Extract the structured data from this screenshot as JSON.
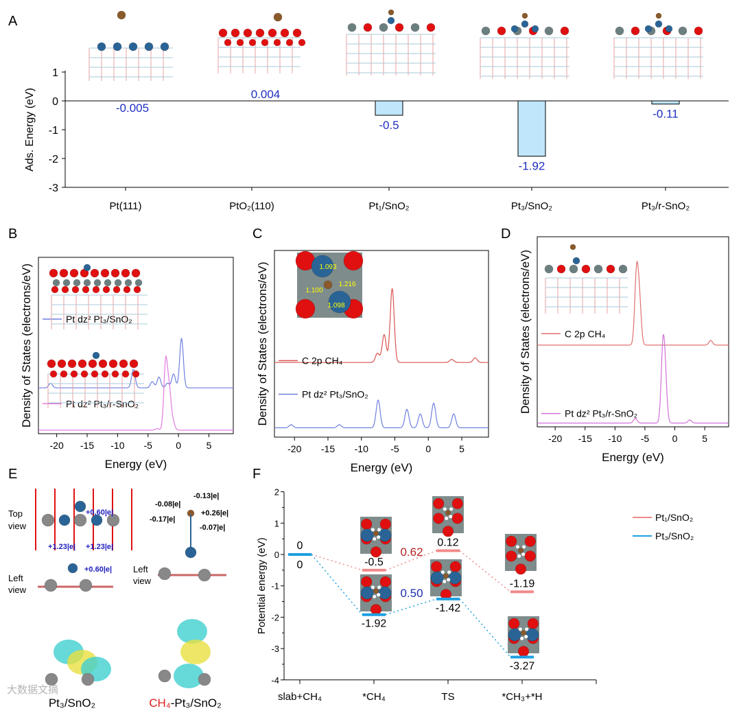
{
  "panels": {
    "a": "A",
    "b": "B",
    "c": "C",
    "d": "D",
    "e": "E",
    "f": "F"
  },
  "chart_data": [
    {
      "id": "A",
      "type": "bar",
      "ylabel": "Ads. Energy (eV)",
      "ylim": [
        -3,
        1
      ],
      "yticks": [
        1,
        0,
        -1,
        -2,
        -3
      ],
      "categories": [
        "Pt(111)",
        "PtO₂(110)",
        "Pt₁/SnO₂",
        "Pt₃/SnO₂",
        "Pt₃/r-SnO₂"
      ],
      "values": [
        -0.005,
        0.004,
        -0.5,
        -1.92,
        -0.11
      ],
      "value_labels": [
        "-0.005",
        "0.004",
        "-0.5",
        "-1.92",
        "-0.11"
      ],
      "bar_color": "#bfe6fb",
      "label_color": "#1f2fbf"
    },
    {
      "id": "B",
      "type": "line",
      "xlabel": "Energy (eV)",
      "ylabel": "Density of States  (electrons/eV)",
      "xlim": [
        -23,
        9
      ],
      "xticks": [
        -20,
        -15,
        -10,
        -5,
        0,
        5
      ],
      "series": [
        {
          "name": "Pt dz² Pt₃/SnO₂",
          "color": "#6f7fe0",
          "peaks": [
            [
              -21,
              0.15
            ],
            [
              -7.4,
              0.6
            ],
            [
              -4.3,
              0.2
            ],
            [
              -3.2,
              0.35
            ],
            [
              -1.8,
              0.15
            ],
            [
              -0.8,
              0.45
            ],
            [
              0.5,
              1.6
            ]
          ]
        },
        {
          "name": "Pt dz² Pt₃/r-SnO₂",
          "color": "#e07ae0",
          "peaks": [
            [
              -3.5,
              0.05
            ],
            [
              -2.1,
              2.2
            ],
            [
              -1.5,
              1.2
            ],
            [
              -0.9,
              0.25
            ]
          ]
        }
      ]
    },
    {
      "id": "C",
      "type": "line",
      "xlabel": "Energy (eV)",
      "ylabel": "Density of States (electrons/eV)",
      "xlim": [
        -23,
        9
      ],
      "xticks": [
        -20,
        -15,
        -10,
        -5,
        0,
        5
      ],
      "inset_labels": [
        "1.093",
        "1.216",
        "1.100",
        "1.098"
      ],
      "series": [
        {
          "name": "C 2p CH₄",
          "color": "#d9534f",
          "peaks": [
            [
              -7.6,
              0.3
            ],
            [
              -6.6,
              0.9
            ],
            [
              -5.4,
              2.4
            ],
            [
              3.5,
              0.1
            ],
            [
              7,
              0.15
            ]
          ]
        },
        {
          "name": "Pt dz² Pt₃/SnO₂",
          "color": "#6f7fe0",
          "peaks": [
            [
              -20.5,
              0.1
            ],
            [
              -13.3,
              0.1
            ],
            [
              -7.5,
              0.9
            ],
            [
              -3.2,
              0.6
            ],
            [
              -1.2,
              0.45
            ],
            [
              0.8,
              0.8
            ],
            [
              3.8,
              0.45
            ]
          ]
        }
      ]
    },
    {
      "id": "D",
      "type": "line",
      "xlabel": "Energy (eV)",
      "ylabel": "Density of States (electrons/eV)",
      "xlim": [
        -23,
        9
      ],
      "xticks": [
        -20,
        -15,
        -10,
        -5,
        0,
        5
      ],
      "series": [
        {
          "name": "C 2p CH₄",
          "color": "#e07070",
          "peaks": [
            [
              -6.4,
              2.3
            ],
            [
              -5.9,
              1.3
            ],
            [
              6,
              0.15
            ]
          ]
        },
        {
          "name": "Pt dz² Pt₃/r-SnO₂",
          "color": "#d070d8",
          "peaks": [
            [
              -6.6,
              0.15
            ],
            [
              -2,
              2.2
            ],
            [
              -1.6,
              1.3
            ],
            [
              2.5,
              0.1
            ]
          ]
        }
      ]
    },
    {
      "id": "F",
      "type": "line",
      "ylabel": "Potential energy (eV)",
      "ylim": [
        -4,
        2
      ],
      "yticks": [
        2,
        1,
        0,
        -1,
        -2,
        -3,
        -4
      ],
      "categories": [
        "slab+CH₄",
        "*CH₄",
        "TS",
        "*CH₃+*H"
      ],
      "series": [
        {
          "name": "Pt₁/SnO₂",
          "color": "#f08a8a",
          "values": [
            0,
            -0.5,
            0.12,
            -1.19
          ],
          "labels": [
            "0",
            "-0.5",
            "0.12",
            "-1.19"
          ],
          "barrier": "0.62",
          "barrier_color": "#b22222"
        },
        {
          "name": "Pt₃/SnO₂",
          "color": "#1ea0e0",
          "values": [
            0,
            -1.92,
            -1.42,
            -3.27
          ],
          "labels": [
            "0",
            "-1.92",
            "-1.42",
            "-3.27"
          ],
          "barrier": "0.50",
          "barrier_color": "#1a2fb0"
        }
      ]
    }
  ],
  "panel_e": {
    "top_view": "Top view",
    "left_view": "Left view",
    "left_view2": "Left view",
    "charges_left": [
      "+0.60|e|",
      "+1.23|e|",
      "+1.23|e|",
      "+0.60|e|"
    ],
    "charges_right": [
      "-0.08|e|",
      "-0.13|e|",
      "+0.26|e|",
      "-0.17|e|",
      "-0.07|e|"
    ],
    "caption_left": "Pt₃/SnO₂",
    "caption_right_red": "CH₄",
    "caption_right": "-Pt₃/SnO₂"
  },
  "watermark": "大数据文摘"
}
